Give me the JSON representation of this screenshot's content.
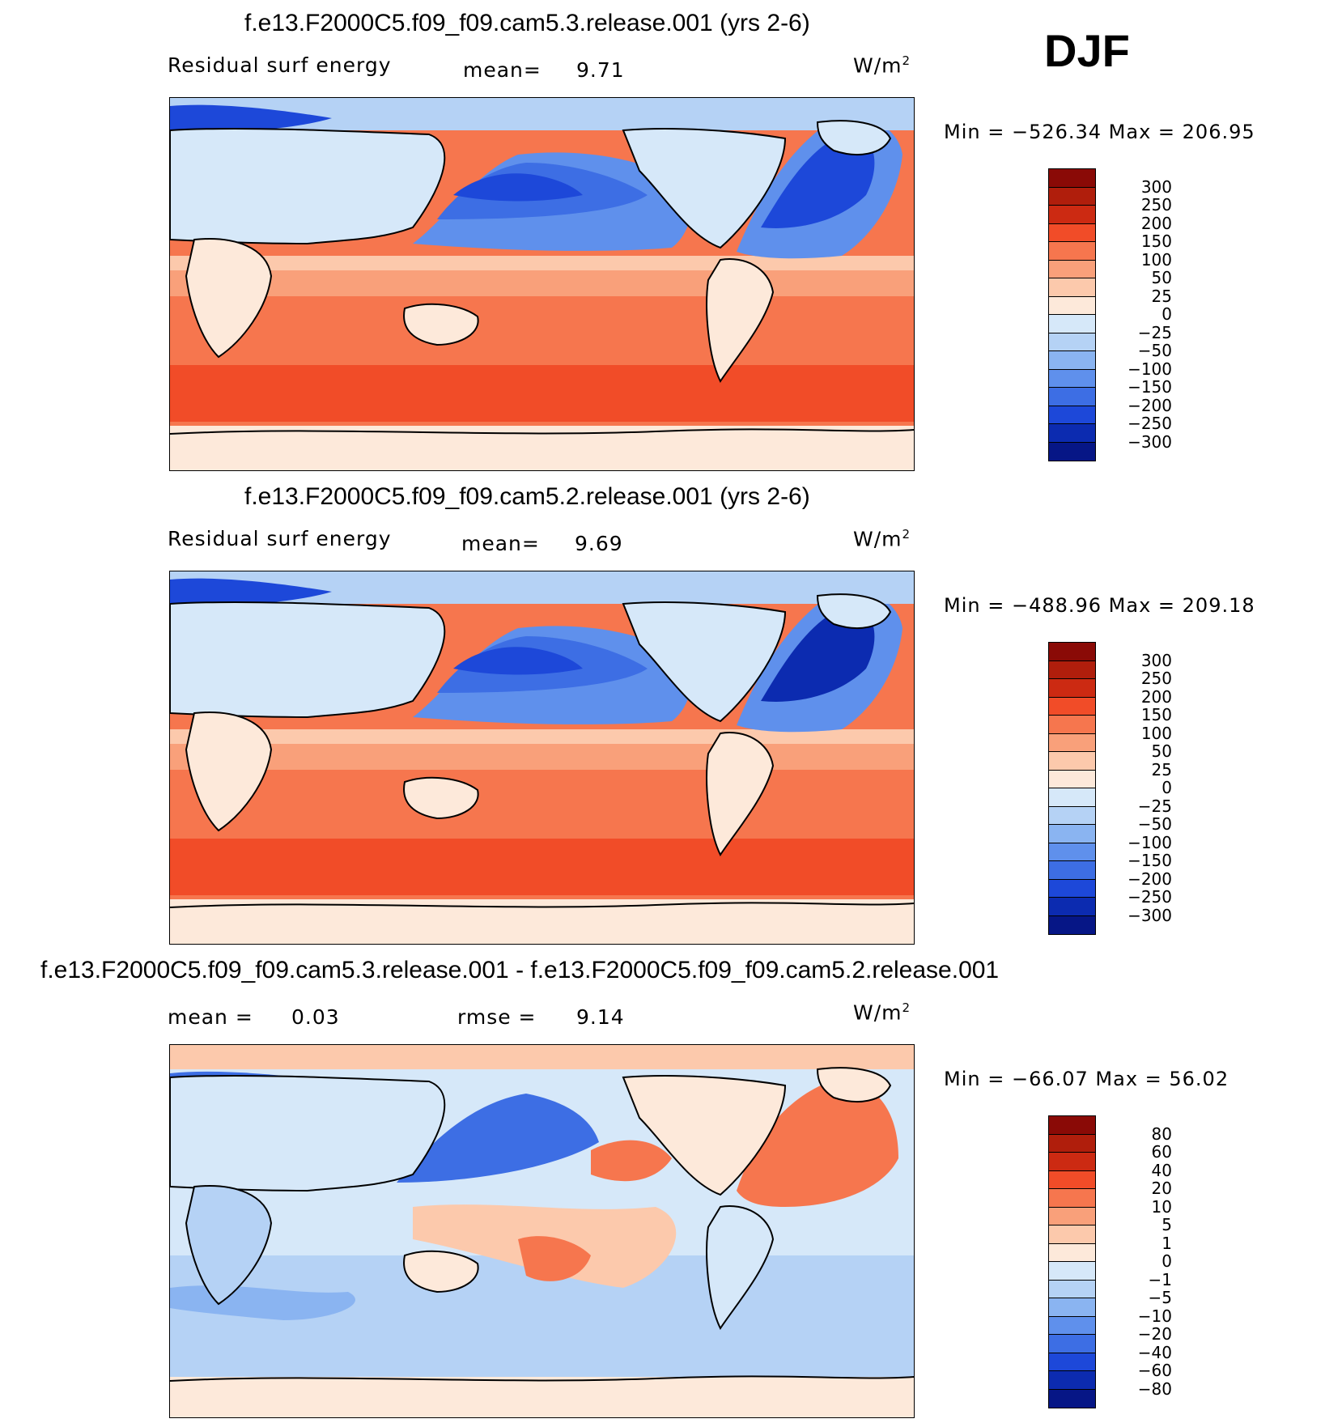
{
  "season": "DJF",
  "colors": {
    "pos": [
      "#fde9da",
      "#fcc9ac",
      "#f9a07a",
      "#f6764e",
      "#f14c28",
      "#cc2a12",
      "#8a0a06"
    ],
    "neg": [
      "#d6e8f9",
      "#b5d2f5",
      "#8ab4f1",
      "#5f90ec",
      "#3d6ee4",
      "#1d48d9",
      "#0c2bb0",
      "#061686"
    ],
    "land": "#d6e8f9",
    "land_warm": "#fde9da"
  },
  "chart_data": [
    {
      "type": "heatmap",
      "title": "f.e13.F2000C5.f09_f09.cam5.3.release.001 (yrs 2-6)",
      "variable": "Residual surf energy",
      "stat_label": "mean=",
      "stat_value": "9.71",
      "units": "W/m",
      "units_sup": "2",
      "min_max": "Min = −526.34 Max = 206.95",
      "colorbar_levels": [
        "300",
        "250",
        "200",
        "150",
        "100",
        "50",
        "25",
        "0",
        "−25",
        "−50",
        "−100",
        "−150",
        "−200",
        "−250",
        "−300"
      ],
      "colorbar_colors": [
        "#8a0a06",
        "#b01e0c",
        "#cc2a12",
        "#f14c28",
        "#f6764e",
        "#f9a07a",
        "#fcc9ac",
        "#fde9da",
        "#d6e8f9",
        "#b5d2f5",
        "#8ab4f1",
        "#5f90ec",
        "#3d6ee4",
        "#1d48d9",
        "#0c2bb0",
        "#061686"
      ]
    },
    {
      "type": "heatmap",
      "title": "f.e13.F2000C5.f09_f09.cam5.2.release.001 (yrs 2-6)",
      "variable": "Residual surf energy",
      "stat_label": "mean=",
      "stat_value": "9.69",
      "units": "W/m",
      "units_sup": "2",
      "min_max": "Min = −488.96 Max = 209.18",
      "colorbar_levels": [
        "300",
        "250",
        "200",
        "150",
        "100",
        "50",
        "25",
        "0",
        "−25",
        "−50",
        "−100",
        "−150",
        "−200",
        "−250",
        "−300"
      ],
      "colorbar_colors": [
        "#8a0a06",
        "#b01e0c",
        "#cc2a12",
        "#f14c28",
        "#f6764e",
        "#f9a07a",
        "#fcc9ac",
        "#fde9da",
        "#d6e8f9",
        "#b5d2f5",
        "#8ab4f1",
        "#5f90ec",
        "#3d6ee4",
        "#1d48d9",
        "#0c2bb0",
        "#061686"
      ]
    },
    {
      "type": "heatmap",
      "title": "f.e13.F2000C5.f09_f09.cam5.3.release.001 - f.e13.F2000C5.f09_f09.cam5.2.release.001",
      "stat_label": "mean =",
      "stat_value": "0.03",
      "stat2_label": "rmse =",
      "stat2_value": "9.14",
      "units": "W/m",
      "units_sup": "2",
      "min_max": "Min = −66.07 Max =  56.02",
      "colorbar_levels": [
        "80",
        "60",
        "40",
        "20",
        "10",
        "5",
        "1",
        "0",
        "−1",
        "−5",
        "−10",
        "−20",
        "−40",
        "−60",
        "−80"
      ],
      "colorbar_colors": [
        "#8a0a06",
        "#b01e0c",
        "#cc2a12",
        "#f14c28",
        "#f6764e",
        "#f9a07a",
        "#fcc9ac",
        "#fde9da",
        "#d6e8f9",
        "#b5d2f5",
        "#8ab4f1",
        "#5f90ec",
        "#3d6ee4",
        "#1d48d9",
        "#0c2bb0",
        "#061686"
      ]
    }
  ]
}
